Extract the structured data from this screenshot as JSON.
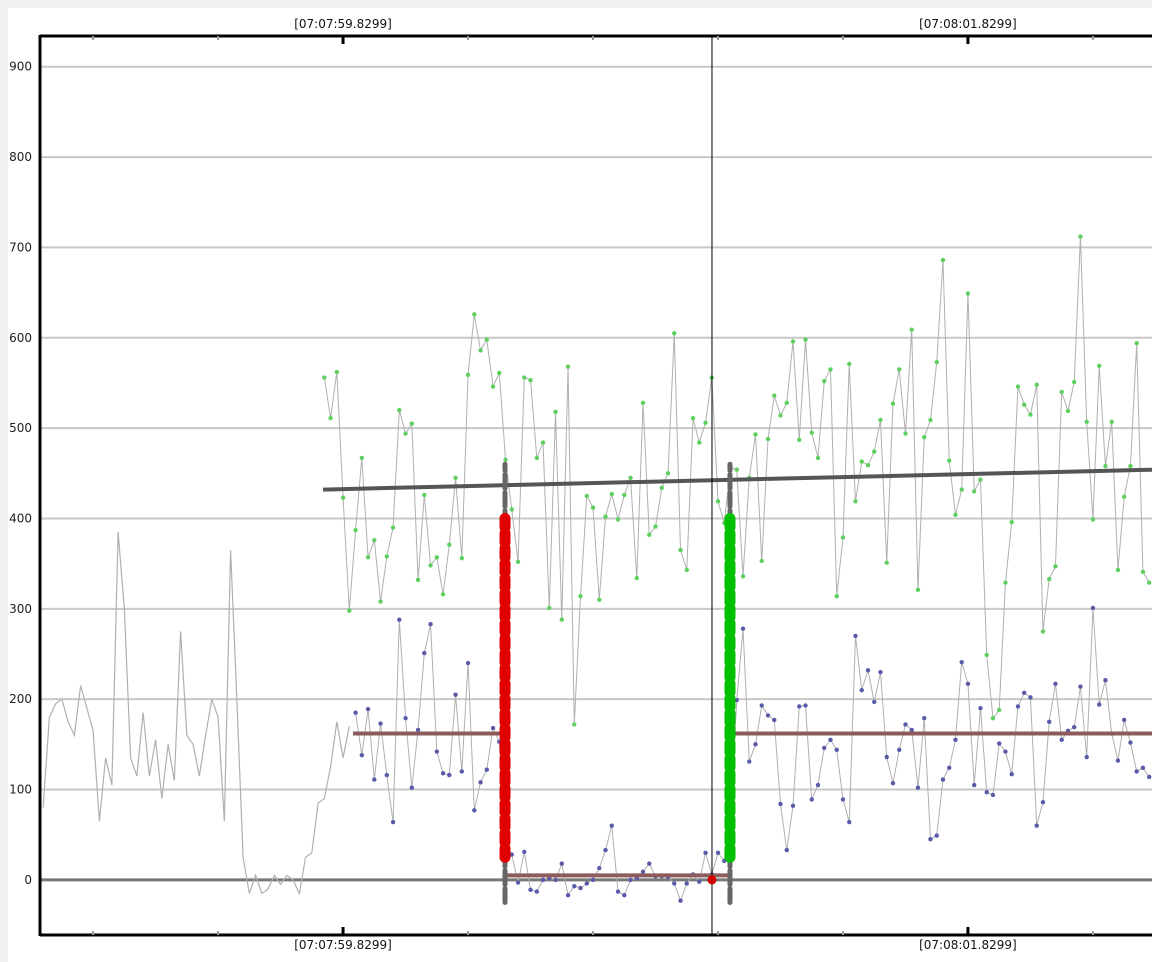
{
  "chart_data": {
    "type": "line",
    "title": "",
    "xlabel": "",
    "ylabel": "",
    "x_tick_labels": [
      "[07:07:59.8299]",
      "[07:08:01.8299]"
    ],
    "x_major_ticks": [
      "07:07:59.8299",
      "07:08:01.8299"
    ],
    "xlim": [
      "07:07:58.8600",
      "07:08:02.4190"
    ],
    "ylim": [
      -61,
      934
    ],
    "y_ticks": [
      0,
      100,
      200,
      300,
      400,
      500,
      600,
      700,
      800,
      900
    ],
    "grid": true,
    "colors": {
      "gridline": "#c8c8c8",
      "zero_line": "#777777",
      "connector": "#b0b0b0",
      "green_marker": "#5fcf5f",
      "blue_marker": "#5a5aaa",
      "trend": "#555555",
      "mean_line": "#8c5c5c",
      "start_marker": "#e00000",
      "end_marker": "#00c000",
      "cursor": "#000000"
    },
    "series_left": {
      "x": [
        "07:07:58.87",
        "07:07:58.89",
        "07:07:58.91",
        "07:07:58.93",
        "07:07:58.95",
        "07:07:58.97",
        "07:07:58.99",
        "07:07:59.01",
        "07:07:59.03",
        "07:07:59.05",
        "07:07:59.07",
        "07:07:59.09",
        "07:07:59.11",
        "07:07:59.13",
        "07:07:59.15",
        "07:07:59.17",
        "07:07:59.19",
        "07:07:59.21",
        "07:07:59.23",
        "07:07:59.25",
        "07:07:59.27",
        "07:07:59.29",
        "07:07:59.31",
        "07:07:59.33",
        "07:07:59.35",
        "07:07:59.37",
        "07:07:59.39",
        "07:07:59.41",
        "07:07:59.43",
        "07:07:59.45",
        "07:07:59.47",
        "07:07:59.49",
        "07:07:59.51",
        "07:07:59.53",
        "07:07:59.55",
        "07:07:59.57",
        "07:07:59.59",
        "07:07:59.61",
        "07:07:59.63",
        "07:07:59.65",
        "07:07:59.67",
        "07:07:59.69",
        "07:07:59.71",
        "07:07:59.73",
        "07:07:59.75",
        "07:07:59.77",
        "07:07:59.79",
        "07:07:59.81",
        "07:07:59.83",
        "07:07:59.85"
      ],
      "values": [
        80,
        180,
        195,
        200,
        175,
        160,
        215,
        190,
        165,
        65,
        135,
        105,
        385,
        300,
        135,
        115,
        185,
        115,
        155,
        90,
        150,
        110,
        275,
        160,
        150,
        115,
        160,
        200,
        180,
        65,
        365,
        200,
        25,
        -15,
        5,
        -15,
        -10,
        5,
        -5,
        5,
        0,
        -15,
        25,
        30,
        85,
        90,
        125,
        175,
        135,
        170
      ]
    },
    "x": [
      "07:07:59.77",
      "07:07:59.79",
      "07:07:59.81",
      "07:07:59.83",
      "07:07:59.85",
      "07:07:59.87",
      "07:07:59.89",
      "07:07:59.91",
      "07:07:59.93",
      "07:07:59.95",
      "07:07:59.97",
      "07:07:59.99",
      "07:08:00.01",
      "07:08:00.03",
      "07:08:00.05",
      "07:08:00.07",
      "07:08:00.09",
      "07:08:00.11",
      "07:08:00.13",
      "07:08:00.15",
      "07:08:00.17",
      "07:08:00.19",
      "07:08:00.21",
      "07:08:00.23",
      "07:08:00.25",
      "07:08:00.27",
      "07:08:00.29",
      "07:08:00.31",
      "07:08:00.33",
      "07:08:00.35",
      "07:08:00.37",
      "07:08:00.39",
      "07:08:00.41",
      "07:08:00.43",
      "07:08:00.45",
      "07:08:00.47",
      "07:08:00.49",
      "07:08:00.51",
      "07:08:00.53",
      "07:08:00.55",
      "07:08:00.57",
      "07:08:00.59",
      "07:08:00.61",
      "07:08:00.63",
      "07:08:00.65",
      "07:08:00.67",
      "07:08:00.69",
      "07:08:00.71",
      "07:08:00.73",
      "07:08:00.75",
      "07:08:00.77",
      "07:08:00.79",
      "07:08:00.81",
      "07:08:00.83",
      "07:08:00.85",
      "07:08:00.87",
      "07:08:00.89",
      "07:08:00.91",
      "07:08:00.93",
      "07:08:00.95",
      "07:08:00.97",
      "07:08:00.99",
      "07:08:01.01",
      "07:08:01.03",
      "07:08:01.05",
      "07:08:01.07",
      "07:08:01.09",
      "07:08:01.11",
      "07:08:01.13",
      "07:08:01.15",
      "07:08:01.17",
      "07:08:01.19",
      "07:08:01.21",
      "07:08:01.23",
      "07:08:01.25",
      "07:08:01.27",
      "07:08:01.29",
      "07:08:01.31",
      "07:08:01.33",
      "07:08:01.35",
      "07:08:01.37",
      "07:08:01.39",
      "07:08:01.41",
      "07:08:01.43",
      "07:08:01.45",
      "07:08:01.47",
      "07:08:01.49",
      "07:08:01.51",
      "07:08:01.53",
      "07:08:01.55",
      "07:08:01.57",
      "07:08:01.59",
      "07:08:01.61",
      "07:08:01.63",
      "07:08:01.65",
      "07:08:01.67",
      "07:08:01.69",
      "07:08:01.71",
      "07:08:01.73",
      "07:08:01.75",
      "07:08:01.77",
      "07:08:01.79",
      "07:08:01.81",
      "07:08:01.83",
      "07:08:01.85",
      "07:08:01.87",
      "07:08:01.89",
      "07:08:01.91",
      "07:08:01.93",
      "07:08:01.95",
      "07:08:01.97",
      "07:08:01.99",
      "07:08:02.01",
      "07:08:02.03",
      "07:08:02.05",
      "07:08:02.07",
      "07:08:02.09",
      "07:08:02.11",
      "07:08:02.13",
      "07:08:02.15",
      "07:08:02.17",
      "07:08:02.19",
      "07:08:02.21",
      "07:08:02.23",
      "07:08:02.25",
      "07:08:02.27",
      "07:08:02.29",
      "07:08:02.31",
      "07:08:02.33",
      "07:08:02.35",
      "07:08:02.37",
      "07:08:02.39",
      "07:08:02.41"
    ],
    "series": [
      {
        "color": "#5fcf5f",
        "values": [
          556,
          511,
          562,
          423,
          298,
          387,
          467,
          357,
          376,
          308,
          358,
          390,
          520,
          494,
          505,
          332,
          426,
          348,
          357,
          316,
          371,
          445,
          356,
          559,
          626,
          586,
          598,
          546,
          561,
          465,
          410,
          352,
          556,
          553,
          467,
          484,
          301,
          518,
          288,
          568,
          172,
          314,
          425,
          412,
          310,
          402,
          427,
          399,
          426,
          445,
          334,
          528,
          382,
          391,
          434,
          450,
          605,
          365,
          343,
          511,
          484,
          506,
          556,
          419,
          395,
          456,
          454,
          336,
          445,
          493,
          353,
          488,
          536,
          514,
          528,
          596,
          487,
          598,
          495,
          467,
          552,
          565,
          314,
          379,
          571,
          419,
          463,
          459,
          474,
          509,
          351,
          527,
          565,
          494,
          609,
          321,
          490,
          509,
          573,
          686,
          464,
          404,
          432,
          649,
          430,
          443,
          249,
          179,
          188,
          329,
          396,
          546,
          526,
          515,
          548,
          275,
          333,
          347,
          540,
          519,
          551,
          712,
          507,
          399,
          569,
          458,
          507,
          343,
          424,
          458,
          594,
          341,
          329
        ]
      },
      {
        "color": "#5a5aaa",
        "values": [
          null,
          null,
          null,
          null,
          null,
          185,
          138,
          189,
          111,
          173,
          116,
          64,
          288,
          179,
          102,
          166,
          251,
          283,
          142,
          118,
          116,
          205,
          120,
          240,
          77,
          108,
          122,
          168,
          153,
          41,
          28,
          -3,
          31,
          -11,
          -13,
          0,
          2,
          0,
          18,
          -17,
          -7,
          -9,
          -4,
          0,
          13,
          33,
          60,
          -13,
          -17,
          0,
          2,
          9,
          18,
          4,
          4,
          3,
          -4,
          -23,
          -4,
          6,
          -2,
          30,
          6,
          30,
          21,
          69,
          199,
          278,
          131,
          150,
          193,
          182,
          177,
          84,
          33,
          82,
          192,
          193,
          89,
          105,
          146,
          155,
          144,
          89,
          64,
          270,
          210,
          232,
          197,
          230,
          136,
          107,
          144,
          172,
          166,
          102,
          179,
          45,
          49,
          111,
          124,
          155,
          241,
          217,
          105,
          190,
          97,
          94,
          151,
          142,
          117,
          192,
          207,
          202,
          60,
          86,
          175,
          217,
          155,
          165,
          169,
          214,
          136,
          301,
          194,
          221,
          162,
          132,
          177,
          152,
          120,
          124,
          114
        ]
      }
    ],
    "trend_line": {
      "from": [
        "07:07:59.7659",
        432
      ],
      "to": [
        "07:08:02.4190",
        454
      ]
    },
    "mean_lines": [
      {
        "from": "07:07:59.8619",
        "to": "07:08:00.3483",
        "value": 162
      },
      {
        "from": "07:08:00.3483",
        "to": "07:08:01.0683",
        "value": 5
      },
      {
        "from": "07:08:01.0683",
        "to": "07:08:02.4190",
        "value": 162
      }
    ],
    "range_markers": [
      {
        "x": "07:08:00.3483",
        "kind": "start",
        "color": "#e00000",
        "bar_range": [
          -25,
          460
        ],
        "dash_range": [
          25,
          400
        ]
      },
      {
        "x": "07:08:01.0683",
        "kind": "end",
        "color": "#00c000",
        "bar_range": [
          -25,
          460
        ],
        "dash_range": [
          25,
          400
        ]
      }
    ],
    "cursor": {
      "x": "07:08:01.0107",
      "point_value": 0
    }
  }
}
